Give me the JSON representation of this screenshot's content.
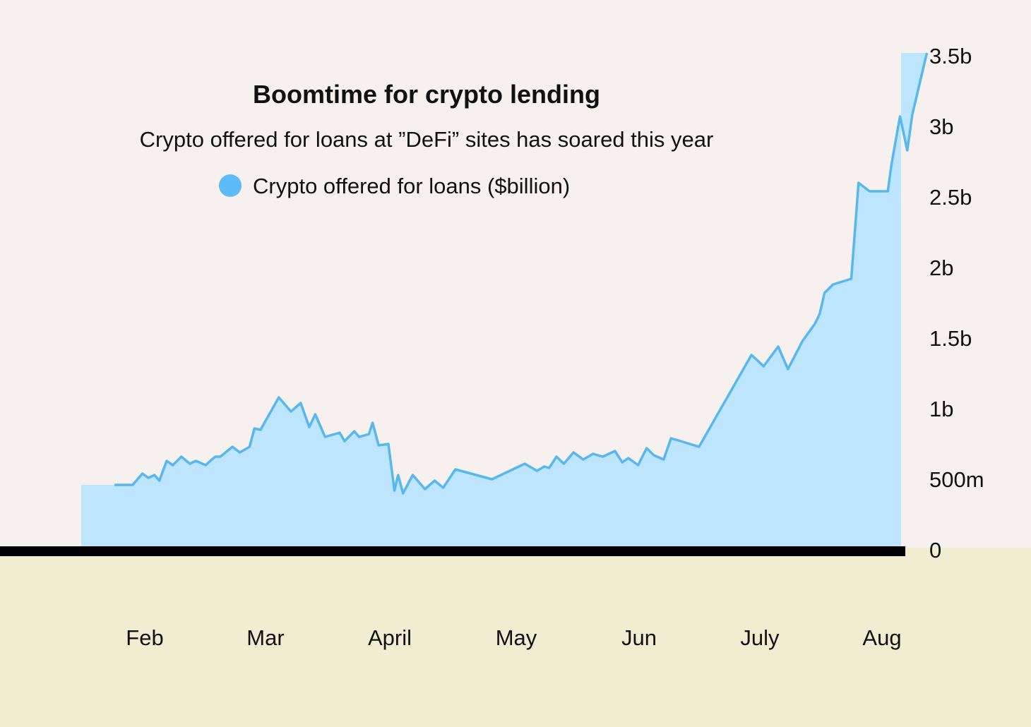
{
  "colors": {
    "background_top": "#f6f1ee",
    "background_bottom": "#f1edd1",
    "area_fill": "#bde5fd",
    "line": "#58b7ef",
    "legend_dot": "#5cbcf7",
    "baseline": "#000000"
  },
  "chart_data": {
    "type": "area",
    "title": "Boomtime for crypto lending",
    "subtitle": "Crypto offered for loans at ”DeFi” sites has soared this year",
    "legend": {
      "placement": "top-center"
    },
    "x_tick_labels": [
      "Feb",
      "Mar",
      "April",
      "May",
      "Jun",
      "July",
      "Aug"
    ],
    "y_tick_labels": [
      "0",
      "500m",
      "1b",
      "1.5b",
      "2b",
      "2.5b",
      "3b",
      "3.5b"
    ],
    "y_tick_values": [
      0,
      0.5,
      1,
      1.5,
      2,
      2.5,
      3,
      3.5
    ],
    "ylim": [
      0,
      3.5
    ],
    "x_axis": {
      "unit": "month",
      "range": [
        0.5,
        7.25
      ]
    },
    "y_axis_position": "right",
    "grid": false,
    "series": [
      {
        "name": "Crypto offered for loans ($billion)",
        "x": [
          0.75,
          0.9,
          0.98,
          1.03,
          1.08,
          1.12,
          1.18,
          1.23,
          1.3,
          1.37,
          1.42,
          1.5,
          1.55,
          1.58,
          1.62,
          1.72,
          1.78,
          1.86,
          1.9,
          1.95,
          2.1,
          2.2,
          2.28,
          2.35,
          2.4,
          2.48,
          2.6,
          2.64,
          2.72,
          2.76,
          2.84,
          2.87,
          2.92,
          3.0,
          3.05,
          3.08,
          3.12,
          3.2,
          3.3,
          3.38,
          3.45,
          3.55,
          3.85,
          4.12,
          4.22,
          4.28,
          4.32,
          4.38,
          4.44,
          4.52,
          4.6,
          4.68,
          4.76,
          4.86,
          4.92,
          4.97,
          5.05,
          5.12,
          5.18,
          5.26,
          5.32,
          5.4,
          5.55,
          5.98,
          6.02,
          6.08,
          6.2,
          6.28,
          6.4,
          6.5,
          6.54,
          6.58,
          6.65,
          6.8,
          6.86,
          6.95,
          7.1,
          7.13,
          7.2,
          7.26,
          7.3,
          7.42
        ],
        "values": [
          0.46,
          0.46,
          0.54,
          0.51,
          0.53,
          0.49,
          0.63,
          0.6,
          0.66,
          0.61,
          0.63,
          0.6,
          0.64,
          0.66,
          0.66,
          0.73,
          0.69,
          0.73,
          0.86,
          0.85,
          1.08,
          0.98,
          1.04,
          0.87,
          0.96,
          0.8,
          0.83,
          0.77,
          0.84,
          0.8,
          0.82,
          0.9,
          0.74,
          0.75,
          0.42,
          0.53,
          0.4,
          0.53,
          0.43,
          0.49,
          0.44,
          0.57,
          0.5,
          0.61,
          0.56,
          0.59,
          0.58,
          0.66,
          0.61,
          0.69,
          0.64,
          0.68,
          0.66,
          0.7,
          0.62,
          0.65,
          0.6,
          0.72,
          0.67,
          0.64,
          0.79,
          0.77,
          0.73,
          1.38,
          1.35,
          1.3,
          1.44,
          1.28,
          1.48,
          1.6,
          1.67,
          1.82,
          1.88,
          1.92,
          2.6,
          2.54,
          2.54,
          2.73,
          3.07,
          2.83,
          3.08,
          3.52
        ]
      }
    ]
  }
}
